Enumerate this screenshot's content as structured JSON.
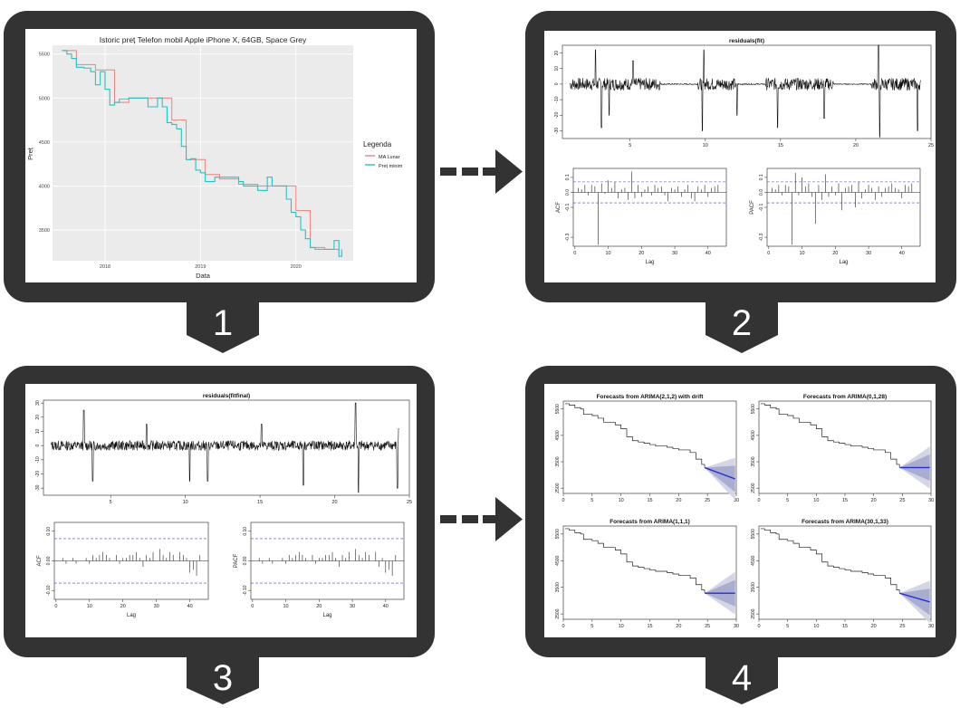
{
  "colors": {
    "frame": "#333333",
    "ggplot_bg": "#ebebeb",
    "ma_line": "#f08080",
    "min_line": "#20c5c5",
    "forecast": "#2a2ad6",
    "band_outer": "#d4d6e6",
    "band_inner": "#a9adcf",
    "ci": "#4545d9"
  },
  "steps": [
    {
      "number": "1",
      "chart_data": {
        "type": "line",
        "title": "Istoric preț Telefon mobil Apple iPhone X, 64GB, Space Grey",
        "xlabel": "Data",
        "ylabel": "Preț",
        "xticks": [
          "2018",
          "2019",
          "2020"
        ],
        "yticks": [
          "3500",
          "4000",
          "4500",
          "5000",
          "5500"
        ],
        "ylim": [
          3150,
          5600
        ],
        "legend_title": "Legenda",
        "legend_position": "right",
        "series": [
          {
            "name": "MA Lunar",
            "color": "#f08080",
            "x": [
              2017.55,
              2017.7,
              2017.9,
              2018.1,
              2018.25,
              2018.55,
              2018.7,
              2018.85,
              2019.05,
              2019.2,
              2019.4,
              2019.6,
              2019.85,
              2020.0,
              2020.15,
              2020.3,
              2020.45
            ],
            "y": [
              5540,
              5380,
              5320,
              4950,
              5000,
              5000,
              4750,
              4300,
              4130,
              4080,
              4020,
              4000,
              4000,
              3720,
              3300,
              3280,
              3260
            ]
          },
          {
            "name": "Preț minim",
            "color": "#20c5c5",
            "x": [
              2017.55,
              2017.6,
              2017.65,
              2017.7,
              2017.78,
              2017.85,
              2017.9,
              2017.95,
              2018.0,
              2018.05,
              2018.1,
              2018.15,
              2018.2,
              2018.25,
              2018.35,
              2018.45,
              2018.55,
              2018.6,
              2018.65,
              2018.7,
              2018.75,
              2018.8,
              2018.85,
              2018.9,
              2018.95,
              2019.0,
              2019.05,
              2019.1,
              2019.15,
              2019.2,
              2019.3,
              2019.4,
              2019.45,
              2019.5,
              2019.6,
              2019.7,
              2019.75,
              2019.85,
              2019.9,
              2019.95,
              2020.0,
              2020.05,
              2020.1,
              2020.15,
              2020.2,
              2020.3,
              2020.4,
              2020.45,
              2020.48
            ],
            "y": [
              5540,
              5500,
              5450,
              5350,
              5340,
              5300,
              5150,
              5300,
              5100,
              4920,
              4950,
              4990,
              4990,
              5000,
              5000,
              4900,
              5000,
              4900,
              4720,
              4700,
              4650,
              4450,
              4300,
              4310,
              4180,
              4150,
              4050,
              4050,
              4100,
              4100,
              4100,
              4050,
              4000,
              4000,
              3950,
              4100,
              4000,
              4000,
              3850,
              3700,
              3650,
              3500,
              3400,
              3300,
              3280,
              3280,
              3380,
              3200,
              3280
            ]
          }
        ]
      }
    },
    {
      "number": "2",
      "chart_data": [
        {
          "type": "line",
          "title": "residuals(fit)",
          "xticks": [
            "5",
            "10",
            "15",
            "20",
            "25"
          ],
          "yticks": [
            "-30",
            "-20",
            "-10",
            "0",
            "10",
            "20"
          ],
          "xlim": [
            0.5,
            25
          ],
          "ylim": [
            -35,
            25
          ]
        },
        {
          "type": "bar",
          "ylabel": "ACF",
          "xlabel": "Lag",
          "xticks": [
            "0",
            "10",
            "20",
            "30",
            "40"
          ],
          "yticks": [
            "-0.3",
            "-0.1",
            "0.0",
            "0.1"
          ],
          "ylim": [
            -0.36,
            0.16
          ],
          "ci": 0.07,
          "values": [
            0.03,
            0.02,
            0.05,
            -0.02,
            0.05,
            0.04,
            -0.35,
            0.06,
            -0.01,
            0.08,
            0.03,
            0.07,
            -0.04,
            0.02,
            0.03,
            -0.05,
            0.14,
            -0.04,
            0.05,
            -0.03,
            0.02,
            0.04,
            -0.02,
            0.05,
            0.03,
            0.04,
            -0.02,
            -0.06,
            0.03,
            0.02,
            0.04,
            -0.03,
            0.02,
            0.05,
            -0.04,
            -0.06,
            0.04,
            0.02,
            0.05,
            -0.03,
            0.03,
            0.04,
            0.05
          ]
        },
        {
          "type": "bar",
          "ylabel": "PACF",
          "xlabel": "Lag",
          "xticks": [
            "0",
            "10",
            "20",
            "30",
            "40"
          ],
          "yticks": [
            "-0.3",
            "-0.1",
            "0.0",
            "0.1"
          ],
          "ylim": [
            -0.36,
            0.16
          ],
          "ci": 0.07,
          "values": [
            0.03,
            0.02,
            0.05,
            -0.02,
            0.05,
            0.04,
            -0.35,
            0.13,
            -0.02,
            0.1,
            0.04,
            0.06,
            -0.03,
            -0.21,
            0.05,
            -0.05,
            0.12,
            -0.03,
            0.04,
            -0.02,
            0.06,
            -0.12,
            0.03,
            0.04,
            0.05,
            -0.1,
            0.07,
            -0.04,
            0.02,
            0.05,
            0.03,
            -0.05,
            0.04,
            -0.03,
            0.03,
            0.04,
            0.06,
            0.03,
            0.02,
            -0.04,
            0.05,
            0.04,
            0.06
          ]
        }
      ]
    },
    {
      "number": "3",
      "chart_data": [
        {
          "type": "line",
          "title": "residuals(fitfinal)",
          "xticks": [
            "5",
            "10",
            "15",
            "20",
            "25"
          ],
          "yticks": [
            "-30",
            "-20",
            "-10",
            "0",
            "10",
            "20",
            "30"
          ],
          "xlim": [
            0.5,
            25
          ],
          "ylim": [
            -35,
            32
          ]
        },
        {
          "type": "bar",
          "ylabel": "ACF",
          "xlabel": "Lag",
          "xticks": [
            "0",
            "10",
            "20",
            "30",
            "40"
          ],
          "yticks": [
            "-0.10",
            "0.00",
            "0.10"
          ],
          "ylim": [
            -0.13,
            0.13
          ],
          "ci": 0.075,
          "values": [
            0.0,
            0.01,
            -0.01,
            0.0,
            0.01,
            -0.01,
            0.0,
            0.0,
            0.01,
            -0.01,
            0.02,
            0.01,
            0.02,
            0.03,
            0.02,
            0.01,
            0.0,
            0.02,
            -0.01,
            0.01,
            0.01,
            0.02,
            0.02,
            0.03,
            0.01,
            -0.02,
            0.02,
            0.01,
            0.03,
            0.0,
            0.04,
            0.02,
            0.01,
            0.03,
            0.02,
            0.0,
            0.03,
            0.02,
            0.01,
            -0.04,
            -0.03,
            -0.05,
            0.02
          ]
        },
        {
          "type": "bar",
          "ylabel": "PACF",
          "xlabel": "Lag",
          "xticks": [
            "0",
            "10",
            "20",
            "30",
            "40"
          ],
          "yticks": [
            "-0.10",
            "0.00",
            "0.10"
          ],
          "ylim": [
            -0.13,
            0.13
          ],
          "ci": 0.075,
          "values": [
            0.0,
            0.01,
            -0.01,
            0.0,
            0.01,
            -0.01,
            0.0,
            0.0,
            0.01,
            -0.01,
            0.02,
            0.01,
            0.02,
            0.03,
            0.02,
            0.01,
            0.0,
            0.02,
            -0.01,
            0.01,
            0.01,
            0.02,
            0.02,
            0.03,
            0.01,
            -0.02,
            0.02,
            0.01,
            0.03,
            0.0,
            0.04,
            0.02,
            0.01,
            0.03,
            0.02,
            0.0,
            0.03,
            -0.02,
            0.01,
            -0.04,
            -0.03,
            -0.05,
            0.02
          ]
        }
      ]
    },
    {
      "number": "4",
      "chart_data": [
        {
          "type": "line",
          "title": "Forecasts from ARIMA(2,1,2) with drift",
          "xticks": [
            "0",
            "5",
            "10",
            "15",
            "20",
            "25",
            "30"
          ],
          "yticks": [
            "2500",
            "3500",
            "4500",
            "5500"
          ],
          "xlim": [
            0,
            30
          ],
          "ylim": [
            2300,
            5800
          ],
          "forecast": {
            "start": 3280,
            "end": 2850
          }
        },
        {
          "type": "line",
          "title": "Forecasts from ARIMA(0,1,28)",
          "xticks": [
            "0",
            "5",
            "10",
            "15",
            "20",
            "25",
            "30"
          ],
          "yticks": [
            "2500",
            "3500",
            "4500",
            "5500"
          ],
          "xlim": [
            0,
            30
          ],
          "ylim": [
            2300,
            5800
          ],
          "forecast": {
            "start": 3280,
            "end": 3280
          }
        },
        {
          "type": "line",
          "title": "Forecasts from ARIMA(1,1,1)",
          "xticks": [
            "0",
            "5",
            "10",
            "15",
            "20",
            "25",
            "30"
          ],
          "yticks": [
            "2500",
            "3500",
            "4500",
            "5500"
          ],
          "xlim": [
            0,
            30
          ],
          "ylim": [
            2300,
            5800
          ],
          "forecast": {
            "start": 3280,
            "end": 3280
          }
        },
        {
          "type": "line",
          "title": "Forecasts from ARIMA(30,1,33)",
          "xticks": [
            "0",
            "5",
            "10",
            "15",
            "20",
            "25",
            "30"
          ],
          "yticks": [
            "2500",
            "3500",
            "4500",
            "5500"
          ],
          "xlim": [
            0,
            30
          ],
          "ylim": [
            2300,
            5800
          ],
          "forecast": {
            "start": 3280,
            "end": 2950
          }
        }
      ]
    }
  ]
}
